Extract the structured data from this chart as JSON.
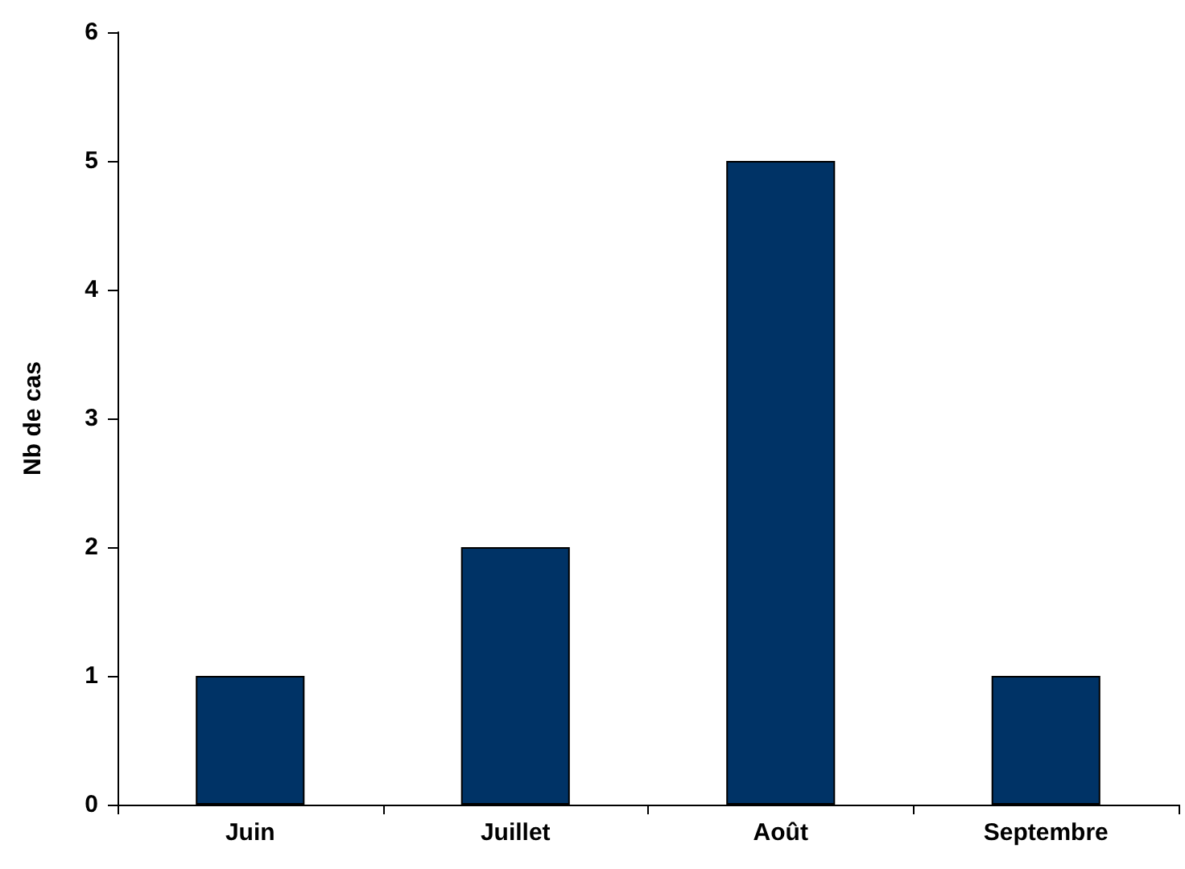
{
  "chart_data": {
    "type": "bar",
    "ylabel": "Nb de cas",
    "categories": [
      "Juin",
      "Juillet",
      "Août",
      "Septembre"
    ],
    "values": [
      1,
      2,
      5,
      1
    ],
    "color": "#003366",
    "ylim": [
      0,
      6
    ],
    "yticks": [
      0,
      1,
      2,
      3,
      4,
      5,
      6
    ],
    "grid": false
  }
}
